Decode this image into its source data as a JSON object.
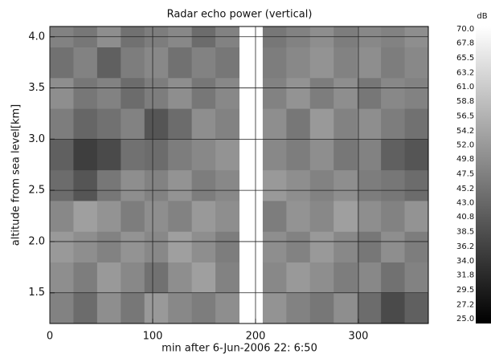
{
  "chart_data": {
    "type": "heatmap",
    "title": "Radar echo power (vertical)",
    "x_label": "min after  6-Jun-2006  22: 6:50",
    "y_label": "altitude from sea level[km]",
    "z_label": "dB",
    "xbins": [
      0,
      23,
      46,
      69,
      92,
      115,
      138,
      161,
      184,
      207,
      230,
      253,
      276,
      299,
      322,
      345,
      368
    ],
    "ybins": [
      1.2,
      1.5,
      1.8,
      2.1,
      2.4,
      2.7,
      3.0,
      3.3,
      3.6,
      3.9,
      4.1
    ],
    "z": [
      [
        48,
        44,
        50,
        46,
        52,
        49,
        47,
        50,
        null,
        51,
        48,
        46,
        50,
        44,
        38,
        42
      ],
      [
        50,
        47,
        52,
        49,
        45,
        50,
        53,
        48,
        null,
        49,
        52,
        50,
        47,
        49,
        45,
        48
      ],
      [
        52,
        50,
        48,
        51,
        49,
        53,
        50,
        47,
        null,
        50,
        48,
        52,
        49,
        46,
        50,
        47
      ],
      [
        49,
        53,
        51,
        47,
        50,
        48,
        52,
        50,
        null,
        47,
        51,
        49,
        53,
        50,
        48,
        51
      ],
      [
        44,
        40,
        46,
        50,
        48,
        51,
        47,
        49,
        null,
        52,
        50,
        48,
        50,
        47,
        46,
        44
      ],
      [
        42,
        36,
        38,
        45,
        44,
        47,
        49,
        51,
        null,
        49,
        47,
        50,
        46,
        48,
        42,
        40
      ],
      [
        47,
        43,
        45,
        48,
        40,
        44,
        50,
        48,
        null,
        50,
        46,
        52,
        48,
        50,
        47,
        45
      ],
      [
        50,
        46,
        48,
        44,
        47,
        50,
        46,
        49,
        null,
        48,
        51,
        47,
        50,
        46,
        49,
        48
      ],
      [
        45,
        48,
        42,
        47,
        49,
        45,
        48,
        46,
        null,
        47,
        49,
        51,
        48,
        50,
        47,
        49
      ],
      [
        48,
        46,
        50,
        45,
        47,
        49,
        44,
        48,
        null,
        46,
        48,
        50,
        47,
        49,
        48,
        50
      ]
    ],
    "xlim": [
      0,
      368
    ],
    "ylim": [
      1.2,
      4.1
    ],
    "zlim": [
      25,
      70
    ],
    "xticks": [
      0,
      100,
      200,
      300
    ],
    "yticks": [
      1.5,
      {
        "value": 2,
        "label": "2.0"
      },
      2.5,
      {
        "value": 3,
        "label": "3.0"
      },
      3.5,
      {
        "value": 4,
        "label": "4.0"
      }
    ],
    "zticks": [
      {
        "value": 70,
        "label": "70.0"
      },
      67.8,
      65.5,
      63.2,
      {
        "value": 61,
        "label": "61.0"
      },
      58.8,
      56.5,
      54.2,
      {
        "value": 52,
        "label": "52.0"
      },
      49.8,
      47.5,
      45.2,
      {
        "value": 43,
        "label": "43.0"
      },
      40.8,
      38.5,
      36.2,
      {
        "value": 34,
        "label": "34.0"
      },
      31.8,
      29.5,
      27.2,
      {
        "value": 25,
        "label": "25.0"
      }
    ],
    "colormap": [
      "#000000",
      "#ffffff"
    ],
    "grid": true
  }
}
